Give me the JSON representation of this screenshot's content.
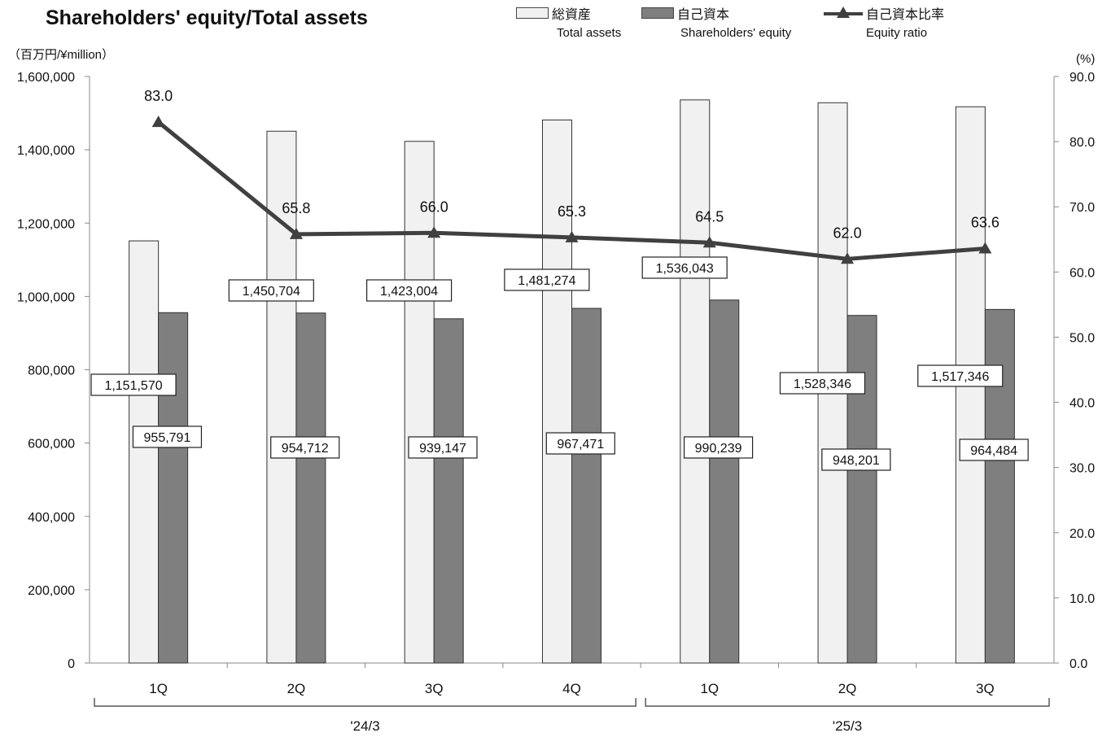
{
  "title": "Shareholders' equity/Total assets",
  "unit_left": "（百万円/¥million）",
  "unit_right": "(%)",
  "legend": [
    {
      "jp": "総資産",
      "en": "Total assets",
      "swatch": "light"
    },
    {
      "jp": "自己資本",
      "en": "Shareholders' equity",
      "swatch": "dark"
    },
    {
      "jp": "自己資本比率",
      "en": "Equity ratio",
      "swatch": "line"
    }
  ],
  "colors": {
    "total_assets": "#f1f1f1",
    "equity": "#7f7f7f",
    "ratio_line": "#404040",
    "axis": "#888888"
  },
  "chart_data": {
    "type": "bar",
    "categories": [
      "1Q",
      "2Q",
      "3Q",
      "4Q",
      "1Q",
      "2Q",
      "3Q"
    ],
    "groups": [
      {
        "label": "'24/3",
        "range": [
          0,
          3
        ]
      },
      {
        "label": "'25/3",
        "range": [
          4,
          6
        ]
      }
    ],
    "series": [
      {
        "name": "Total assets",
        "type": "bar",
        "values": [
          1151570,
          1450704,
          1423004,
          1481274,
          1536043,
          1528346,
          1517346
        ],
        "labels": [
          "1,151,570",
          "1,450,704",
          "1,423,004",
          "1,481,274",
          "1,536,043",
          "1,528,346",
          "1,517,346"
        ]
      },
      {
        "name": "Shareholders' equity",
        "type": "bar",
        "values": [
          955791,
          954712,
          939147,
          967471,
          990239,
          948201,
          964484
        ],
        "labels": [
          "955,791",
          "954,712",
          "939,147",
          "967,471",
          "990,239",
          "948,201",
          "964,484"
        ]
      },
      {
        "name": "Equity ratio",
        "type": "line",
        "axis": "right",
        "values": [
          83.0,
          65.8,
          66.0,
          65.3,
          64.5,
          62.0,
          63.6
        ],
        "labels": [
          "83.0",
          "65.8",
          "66.0",
          "65.3",
          "64.5",
          "62.0",
          "63.6"
        ]
      }
    ],
    "y_left": {
      "min": 0,
      "max": 1600000,
      "ticks": [
        0,
        200000,
        400000,
        600000,
        800000,
        1000000,
        1200000,
        1400000,
        1600000
      ],
      "tick_labels": [
        "0",
        "200,000",
        "400,000",
        "600,000",
        "800,000",
        "1,000,000",
        "1,200,000",
        "1,400,000",
        "1,600,000"
      ]
    },
    "y_right": {
      "min": 0,
      "max": 90,
      "ticks": [
        0,
        10,
        20,
        30,
        40,
        50,
        60,
        70,
        80,
        90
      ],
      "tick_labels": [
        "0.0",
        "10.0",
        "20.0",
        "30.0",
        "40.0",
        "50.0",
        "60.0",
        "70.0",
        "80.0",
        "90.0"
      ]
    },
    "grid": false
  }
}
